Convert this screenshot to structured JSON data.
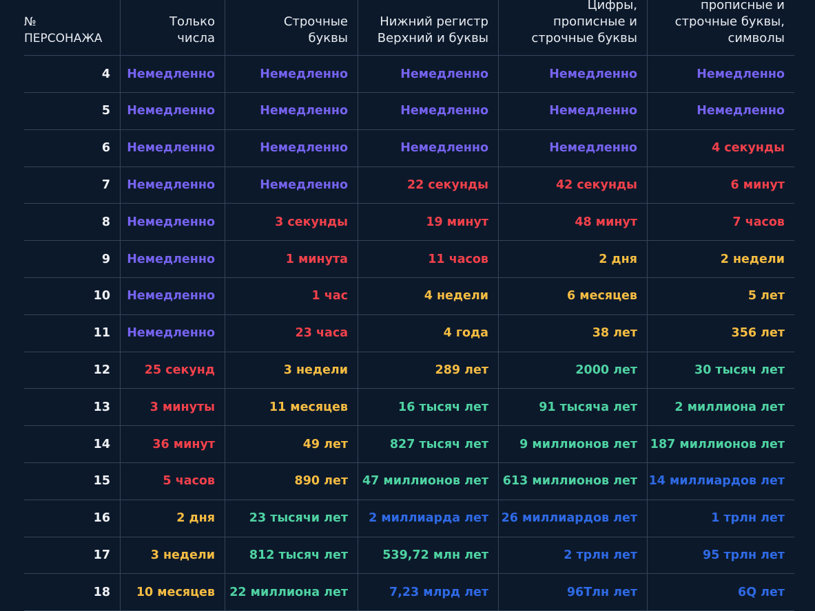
{
  "colors": {
    "background": "#0c192b",
    "divider": "#34445a",
    "header_text": "#e8ecf1",
    "instant": "#7663f0",
    "red": "#f2414b",
    "yellow": "#f6bd42",
    "green": "#4fd3a2",
    "blue": "#2f6ae6"
  },
  "header": {
    "col0": [
      "№",
      "ПЕРСОНАЖА"
    ],
    "col1": [
      "Только",
      "числа"
    ],
    "col2": [
      "Строчные",
      "буквы"
    ],
    "col3": [
      "Нижний регистр",
      "Верхний и буквы"
    ],
    "col4": [
      "Цифры,",
      "прописные и",
      "строчные буквы"
    ],
    "col5": [
      "прописные и",
      "строчные буквы,",
      "символы"
    ]
  },
  "rows": [
    {
      "n": "4",
      "cells": [
        [
          "Немедленно",
          "instant"
        ],
        [
          "Немедленно",
          "instant"
        ],
        [
          "Немедленно",
          "instant"
        ],
        [
          "Немедленно",
          "instant"
        ],
        [
          "Немедленно",
          "instant"
        ]
      ]
    },
    {
      "n": "5",
      "cells": [
        [
          "Немедленно",
          "instant"
        ],
        [
          "Немедленно",
          "instant"
        ],
        [
          "Немедленно",
          "instant"
        ],
        [
          "Немедленно",
          "instant"
        ],
        [
          "Немедленно",
          "instant"
        ]
      ]
    },
    {
      "n": "6",
      "cells": [
        [
          "Немедленно",
          "instant"
        ],
        [
          "Немедленно",
          "instant"
        ],
        [
          "Немедленно",
          "instant"
        ],
        [
          "Немедленно",
          "instant"
        ],
        [
          "4 секунды",
          "red"
        ]
      ]
    },
    {
      "n": "7",
      "cells": [
        [
          "Немедленно",
          "instant"
        ],
        [
          "Немедленно",
          "instant"
        ],
        [
          "22 секунды",
          "red"
        ],
        [
          "42 секунды",
          "red"
        ],
        [
          "6 минут",
          "red"
        ]
      ]
    },
    {
      "n": "8",
      "cells": [
        [
          "Немедленно",
          "instant"
        ],
        [
          "3 секунды",
          "red"
        ],
        [
          "19 минут",
          "red"
        ],
        [
          "48 минут",
          "red"
        ],
        [
          "7 часов",
          "red"
        ]
      ]
    },
    {
      "n": "9",
      "cells": [
        [
          "Немедленно",
          "instant"
        ],
        [
          "1 минута",
          "red"
        ],
        [
          "11 часов",
          "red"
        ],
        [
          "2 дня",
          "yellow"
        ],
        [
          "2 недели",
          "yellow"
        ]
      ]
    },
    {
      "n": "10",
      "cells": [
        [
          "Немедленно",
          "instant"
        ],
        [
          "1 час",
          "red"
        ],
        [
          "4 недели",
          "yellow"
        ],
        [
          "6 месяцев",
          "yellow"
        ],
        [
          "5 лет",
          "yellow"
        ]
      ]
    },
    {
      "n": "11",
      "cells": [
        [
          "Немедленно",
          "instant"
        ],
        [
          "23 часа",
          "red"
        ],
        [
          "4 года",
          "yellow"
        ],
        [
          "38 лет",
          "yellow"
        ],
        [
          "356 лет",
          "yellow"
        ]
      ]
    },
    {
      "n": "12",
      "cells": [
        [
          "25 секунд",
          "red"
        ],
        [
          "3 недели",
          "yellow"
        ],
        [
          "289 лет",
          "yellow"
        ],
        [
          "2000 лет",
          "green"
        ],
        [
          "30 тысяч лет",
          "green"
        ]
      ]
    },
    {
      "n": "13",
      "cells": [
        [
          "3 минуты",
          "red"
        ],
        [
          "11 месяцев",
          "yellow"
        ],
        [
          "16 тысяч лет",
          "green"
        ],
        [
          "91 тысяча лет",
          "green"
        ],
        [
          "2 миллиона лет",
          "green"
        ]
      ]
    },
    {
      "n": "14",
      "cells": [
        [
          "36 минут",
          "red"
        ],
        [
          "49 лет",
          "yellow"
        ],
        [
          "827 тысяч лет",
          "green"
        ],
        [
          "9 миллионов лет",
          "green"
        ],
        [
          "187 миллионов лет",
          "green"
        ]
      ]
    },
    {
      "n": "15",
      "cells": [
        [
          "5 часов",
          "red"
        ],
        [
          "890 лет",
          "yellow"
        ],
        [
          "47 миллионов лет",
          "green"
        ],
        [
          "613 миллионов лет",
          "green"
        ],
        [
          "14 миллиардов лет",
          "blue"
        ]
      ]
    },
    {
      "n": "16",
      "cells": [
        [
          "2 дня",
          "yellow"
        ],
        [
          "23 тысячи лет",
          "green"
        ],
        [
          "2 миллиарда лет",
          "blue"
        ],
        [
          "26 миллиардов лет",
          "blue"
        ],
        [
          "1 трлн лет",
          "blue"
        ]
      ]
    },
    {
      "n": "17",
      "cells": [
        [
          "3 недели",
          "yellow"
        ],
        [
          "812 тысяч лет",
          "green"
        ],
        [
          "539,72 млн лет",
          "green"
        ],
        [
          "2 трлн лет",
          "blue"
        ],
        [
          "95 трлн лет",
          "blue"
        ]
      ]
    },
    {
      "n": "18",
      "cells": [
        [
          "10 месяцев",
          "yellow"
        ],
        [
          "22 миллиона лет",
          "green"
        ],
        [
          "7,23 млрд лет",
          "blue"
        ],
        [
          "96Тлн лет",
          "blue"
        ],
        [
          "6Q лет",
          "blue"
        ]
      ]
    }
  ]
}
